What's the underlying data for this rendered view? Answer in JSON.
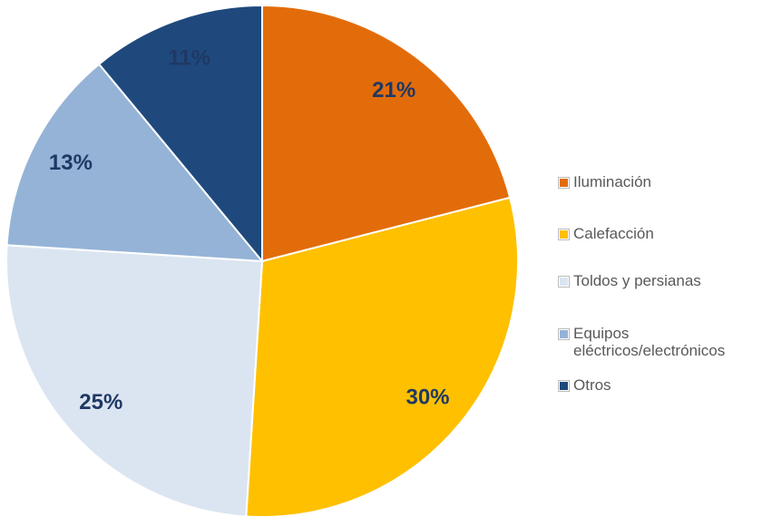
{
  "chart_data": {
    "type": "pie",
    "categories": [
      "Iluminación",
      "Calefacción",
      "Toldos y persianas",
      "Equipos eléctricos/electrónicos",
      "Otros"
    ],
    "values": [
      21,
      30,
      25,
      13,
      11
    ],
    "value_labels": [
      "21%",
      "30%",
      "25%",
      "13%",
      "11%"
    ],
    "colors": [
      "#e36c0a",
      "#ffc000",
      "#dbe5f1",
      "#95b3d7",
      "#1f497d"
    ],
    "legend": "right"
  }
}
